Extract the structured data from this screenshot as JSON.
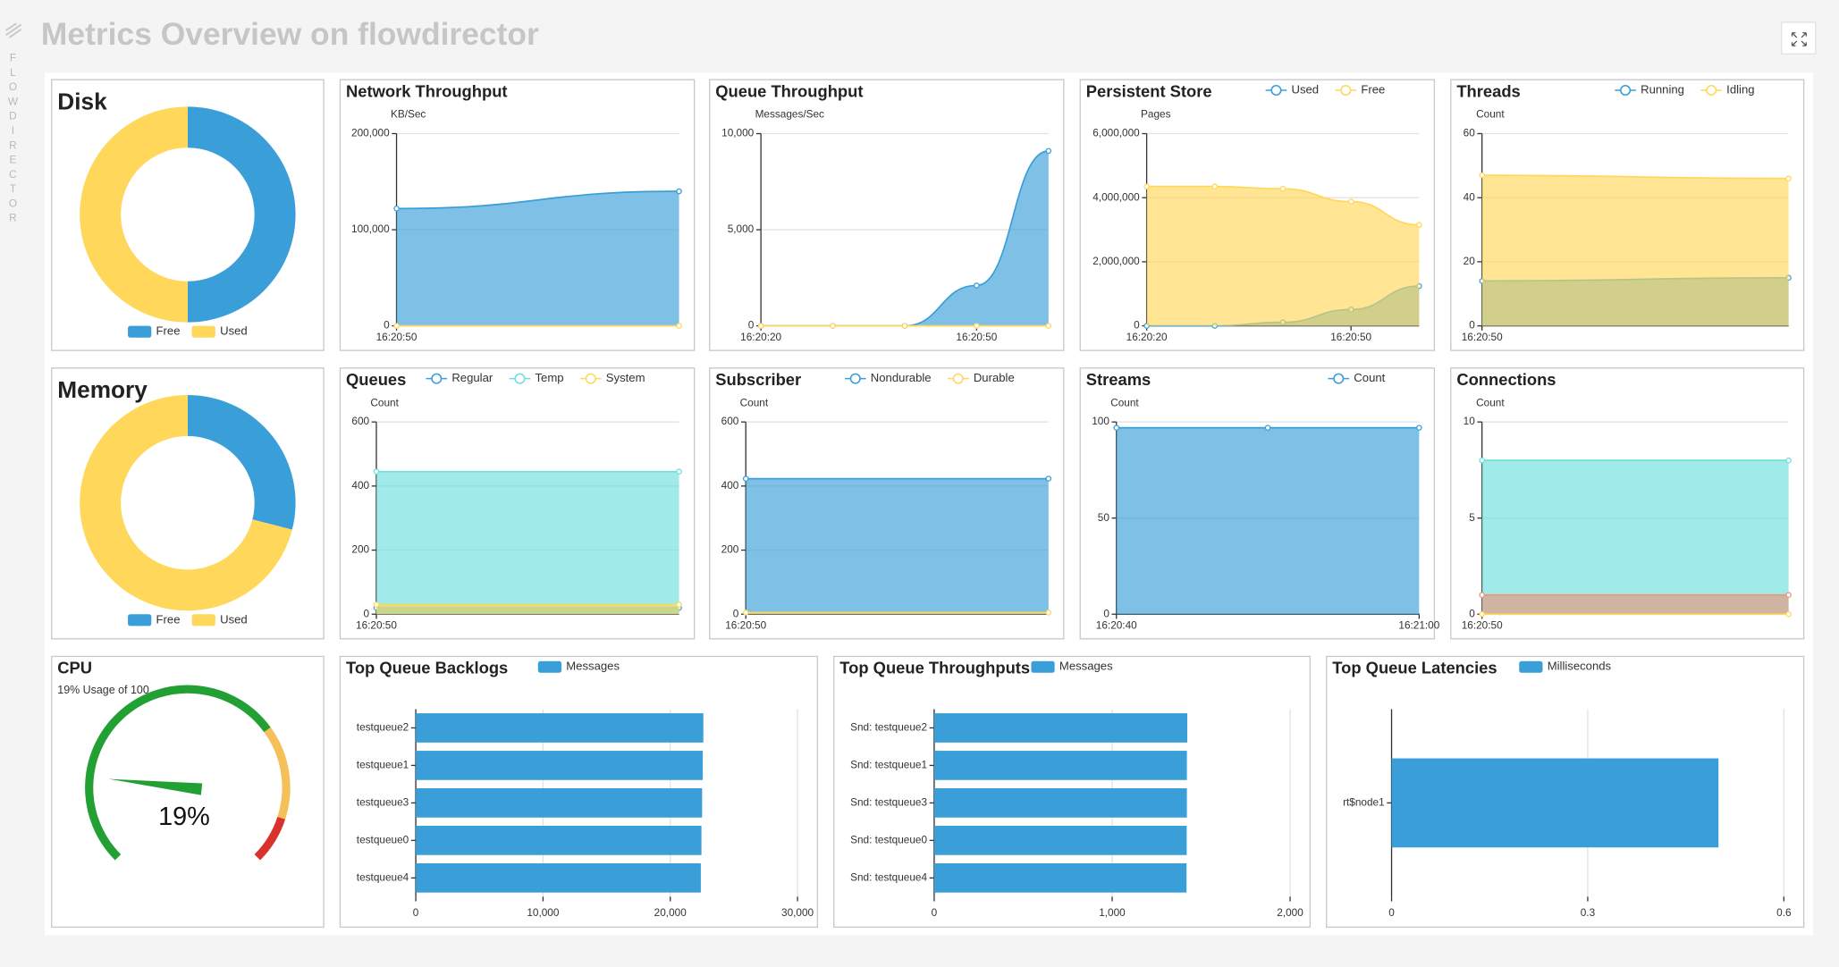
{
  "header": {
    "title": "Metrics Overview on flowdirector"
  },
  "sidebar": {
    "letters": [
      "F",
      "L",
      "O",
      "W",
      "D",
      "I",
      "R",
      "E",
      "C",
      "T",
      "O",
      "R"
    ]
  },
  "chart_data": [
    {
      "type": "pie",
      "title": "Disk",
      "categories": [
        "Free",
        "Used"
      ],
      "values": [
        50,
        50
      ],
      "colors": [
        "#3a9fd8",
        "#ffd75a"
      ]
    },
    {
      "type": "area",
      "title": "Network Throughput",
      "y_label": "KB/Sec",
      "categories": [
        "16:20:50",
        null
      ],
      "series": [
        {
          "color": "#3a9fd8",
          "values": [
            122000,
            140000
          ]
        },
        {
          "color": "#ffd75a",
          "values": [
            0,
            0
          ]
        }
      ],
      "ylim": [
        0,
        200000
      ],
      "yticks": [
        0,
        {
          "value": 100000,
          "label": "100,000"
        },
        {
          "value": 200000,
          "label": "200,000"
        }
      ],
      "grid": true
    },
    {
      "type": "area",
      "title": "Queue Throughput",
      "y_label": "Messages/Sec",
      "categories": [
        "16:20:20",
        null,
        null,
        "16:20:50",
        null
      ],
      "series": [
        {
          "color": "#3a9fd8",
          "values": [
            0,
            0,
            0,
            2100,
            9100
          ]
        },
        {
          "color": "#ffd75a",
          "values": [
            0,
            0,
            0,
            0,
            0
          ]
        }
      ],
      "ylim": [
        0,
        10000
      ],
      "yticks": [
        0,
        {
          "value": 5000,
          "label": "5,000"
        },
        {
          "value": 10000,
          "label": "10,000"
        }
      ],
      "grid": true
    },
    {
      "type": "area",
      "title": "Persistent Store",
      "y_label": "Pages",
      "categories": [
        "16:20:20",
        null,
        null,
        "16:20:50",
        null
      ],
      "series": [
        {
          "name": "Used",
          "color": "#3a9fd8",
          "values": [
            0,
            0,
            110000,
            510000,
            1240000
          ]
        },
        {
          "name": "Free",
          "color": "#ffd75a",
          "values": [
            4350000,
            4350000,
            4280000,
            3880000,
            3150000
          ]
        }
      ],
      "ylim": [
        0,
        6000000
      ],
      "yticks": [
        0,
        {
          "value": 2000000,
          "label": "2,000,000"
        },
        {
          "value": 4000000,
          "label": "4,000,000"
        },
        {
          "value": 6000000,
          "label": "6,000,000"
        }
      ],
      "grid": true
    },
    {
      "type": "area",
      "title": "Threads",
      "y_label": "Count",
      "categories": [
        "16:20:50",
        null
      ],
      "series": [
        {
          "name": "Running",
          "color": "#3a9fd8",
          "values": [
            14,
            15
          ]
        },
        {
          "name": "Idling",
          "color": "#ffd75a",
          "values": [
            47,
            46
          ]
        }
      ],
      "ylim": [
        0,
        60
      ],
      "yticks": [
        0,
        20,
        40,
        60
      ],
      "grid": true
    },
    {
      "type": "pie",
      "title": "Memory",
      "categories": [
        "Free",
        "Used"
      ],
      "values": [
        29,
        71
      ],
      "colors": [
        "#3a9fd8",
        "#ffd75a"
      ]
    },
    {
      "type": "area",
      "title": "Queues",
      "y_label": "Count",
      "categories": [
        "16:20:50",
        null
      ],
      "series": [
        {
          "name": "Regular",
          "color": "#3a9fd8",
          "values": [
            20,
            20
          ]
        },
        {
          "name": "Temp",
          "color": "#6fdede",
          "values": [
            445,
            445
          ]
        },
        {
          "name": "System",
          "color": "#ffd75a",
          "values": [
            30,
            30
          ]
        }
      ],
      "ylim": [
        0,
        600
      ],
      "yticks": [
        0,
        200,
        400,
        600
      ],
      "grid": true
    },
    {
      "type": "area",
      "title": "Subscriber",
      "y_label": "Count",
      "categories": [
        "16:20:50",
        null
      ],
      "series": [
        {
          "name": "Nondurable",
          "color": "#3a9fd8",
          "values": [
            423,
            423
          ]
        },
        {
          "name": "Durable",
          "color": "#ffd75a",
          "values": [
            5,
            5
          ]
        }
      ],
      "ylim": [
        0,
        600
      ],
      "yticks": [
        0,
        200,
        400,
        600
      ],
      "grid": true
    },
    {
      "type": "area",
      "title": "Streams",
      "y_label": "Count",
      "categories": [
        "16:20:40",
        null,
        "16:21:00"
      ],
      "series": [
        {
          "name": "Count",
          "color": "#3a9fd8",
          "values": [
            97,
            97,
            97
          ]
        }
      ],
      "ylim": [
        0,
        100
      ],
      "yticks": [
        0,
        50,
        100
      ],
      "grid": true
    },
    {
      "type": "area",
      "title": "Connections",
      "y_label": "Count",
      "categories": [
        "16:20:50",
        null
      ],
      "series": [
        {
          "color": "#6fdede",
          "values": [
            8,
            8
          ]
        },
        {
          "color": "#e8967a",
          "values": [
            1,
            1
          ]
        },
        {
          "color": "#ffd75a",
          "values": [
            0,
            0
          ]
        }
      ],
      "ylim": [
        0,
        10
      ],
      "yticks": [
        0,
        5,
        10
      ],
      "grid": true
    },
    {
      "type": "gauge",
      "title": "CPU",
      "subtitle": "19% Usage of 100",
      "value": 19,
      "value_label": "19%",
      "range": [
        0,
        100
      ],
      "bands": [
        {
          "to": 70,
          "color": "#22a033"
        },
        {
          "to": 90,
          "color": "#f5c05a"
        },
        {
          "to": 100,
          "color": "#d7322c"
        }
      ],
      "needle_color": "#22a033"
    },
    {
      "type": "hbar",
      "title": "Top Queue Backlogs",
      "categories": [
        "testqueue2",
        "testqueue1",
        "testqueue3",
        "testqueue0",
        "testqueue4"
      ],
      "series": [
        {
          "name": "Messages",
          "color": "#3a9fd8",
          "values": [
            22600,
            22550,
            22500,
            22450,
            22400
          ]
        }
      ],
      "xlim": [
        0,
        30000
      ],
      "xticks": [
        0,
        {
          "value": 10000,
          "label": "10,000"
        },
        {
          "value": 20000,
          "label": "20,000"
        },
        {
          "value": 30000,
          "label": "30,000"
        }
      ],
      "grid": true
    },
    {
      "type": "hbar",
      "title": "Top Queue Throughputs",
      "categories": [
        "Snd: testqueue2",
        "Snd: testqueue1",
        "Snd: testqueue3",
        "Snd: testqueue0",
        "Snd: testqueue4"
      ],
      "series": [
        {
          "name": "Messages",
          "color": "#3a9fd8",
          "values": [
            1422,
            1420,
            1420,
            1419,
            1418
          ]
        }
      ],
      "xlim": [
        0,
        2000
      ],
      "xticks": [
        0,
        {
          "value": 1000,
          "label": "1,000"
        },
        {
          "value": 2000,
          "label": "2,000"
        }
      ],
      "grid": true
    },
    {
      "type": "hbar",
      "title": "Top Queue Latencies",
      "categories": [
        "rt$node1"
      ],
      "series": [
        {
          "name": "Milliseconds",
          "color": "#3a9fd8",
          "values": [
            0.5
          ]
        }
      ],
      "xlim": [
        0,
        0.6
      ],
      "xticks": [
        0,
        0.3,
        0.6
      ],
      "grid": true
    }
  ]
}
